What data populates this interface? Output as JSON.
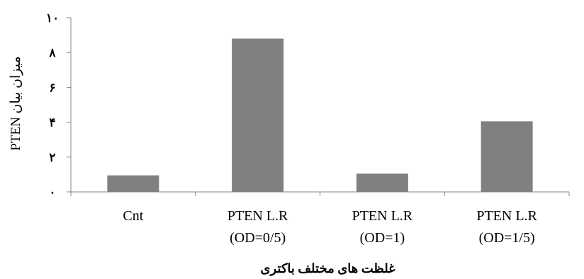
{
  "chart_data": {
    "type": "bar",
    "categories": [
      [
        "Cnt"
      ],
      [
        "PTEN L.R",
        "(OD=0/5)"
      ],
      [
        "PTEN L.R",
        "(OD=1)"
      ],
      [
        "PTEN L.R",
        "(OD=1/5)"
      ]
    ],
    "values": [
      0.95,
      8.8,
      1.05,
      4.05
    ],
    "ylim": [
      0,
      10
    ],
    "yticks": [
      0,
      2,
      4,
      6,
      8,
      10
    ],
    "ytick_labels": [
      "۰",
      "۲",
      "۴",
      "۶",
      "۸",
      "۱۰"
    ],
    "xlabel": "غلظت های مختلف باکتری",
    "ylabel": "میزان بیان PTEN",
    "bar_color": "#808080",
    "axis_color": "#868686",
    "grid": false,
    "legend": "none"
  }
}
